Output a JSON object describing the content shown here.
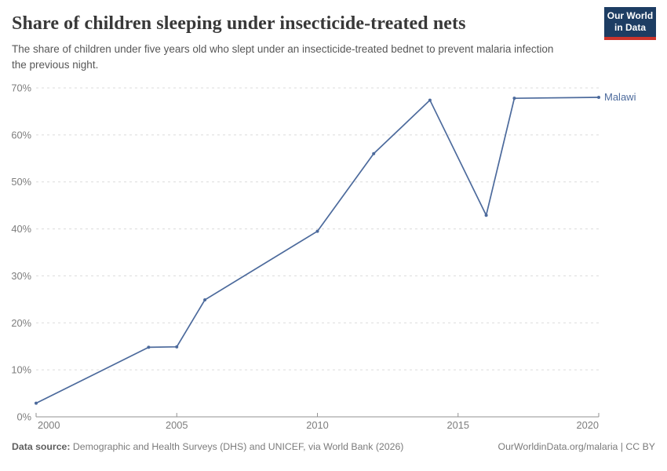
{
  "header": {
    "title": "Share of children sleeping under insecticide-treated nets",
    "subtitle": "The share of children under five years old who slept under an insecticide-treated bednet to prevent malaria infection the previous night.",
    "logo_line1": "Our World",
    "logo_line2": "in Data"
  },
  "chart_data": {
    "type": "line",
    "title": "Share of children sleeping under insecticide-treated nets",
    "xlabel": "",
    "ylabel": "",
    "xlim": [
      2000,
      2020
    ],
    "ylim": [
      0,
      70
    ],
    "xticks": [
      2000,
      2005,
      2010,
      2015,
      2020
    ],
    "yticks": [
      0,
      10,
      20,
      30,
      40,
      50,
      60,
      70
    ],
    "ytick_suffix": "%",
    "grid": "horizontal-dashed",
    "legend_position": "line-end-label",
    "series": [
      {
        "name": "Malawi",
        "color": "#4c6a9c",
        "x": [
          2000,
          2004,
          2005,
          2006,
          2010,
          2012,
          2014,
          2016,
          2017,
          2020
        ],
        "values": [
          2.9,
          14.8,
          14.9,
          24.9,
          39.5,
          56.0,
          67.4,
          42.9,
          67.8,
          68.0
        ]
      }
    ]
  },
  "footer": {
    "source_label": "Data source:",
    "source_text": "Demographic and Health Surveys (DHS) and UNICEF, via World Bank (2026)",
    "credit": "OurWorldinData.org/malaria | CC BY"
  },
  "colors": {
    "line": "#4c6a9c",
    "logo_background": "#1d3d63",
    "logo_accent": "#cc342c",
    "gridline": "#dbdbdb",
    "axis": "#929292",
    "tick_text": "#7d7d7d",
    "title_text": "#383838",
    "subtitle_text": "#575757",
    "footer_text": "#7b7b7b"
  }
}
